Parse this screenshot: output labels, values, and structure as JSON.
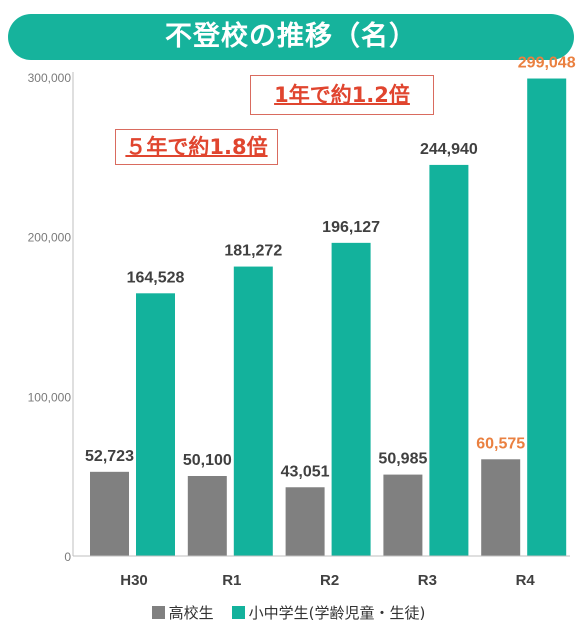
{
  "title": "不登校の推移（名）",
  "annotations": {
    "five_year": "５年で約1.8倍",
    "one_year": "1年で約1.2倍"
  },
  "colors": {
    "banner": "#16b39c",
    "high_school": "#808080",
    "elementary_middle": "#13b29c",
    "highlight_label": "#ea8040",
    "annotation_text": "#e0452f"
  },
  "chart_data": {
    "type": "bar",
    "categories": [
      "H30",
      "R1",
      "R2",
      "R3",
      "R4"
    ],
    "series": [
      {
        "name": "高校生",
        "values": [
          52723,
          50100,
          43051,
          50985,
          60575
        ],
        "labels": [
          "52,723",
          "50,100",
          "43,051",
          "50,985",
          "60,575"
        ]
      },
      {
        "name": "小中学生(学齢児童・生徒)",
        "values": [
          164528,
          181272,
          196127,
          244940,
          299048
        ],
        "labels": [
          "164,528",
          "181,272",
          "196,127",
          "244,940",
          "299,048"
        ]
      }
    ],
    "ylim": [
      0,
      300000
    ],
    "yticks": [
      0,
      100000,
      200000,
      300000
    ],
    "ytick_labels": [
      "0",
      "100,000",
      "200,000",
      "300,000"
    ],
    "highlighted_category": "R4",
    "grid": false,
    "legend": "bottom"
  }
}
